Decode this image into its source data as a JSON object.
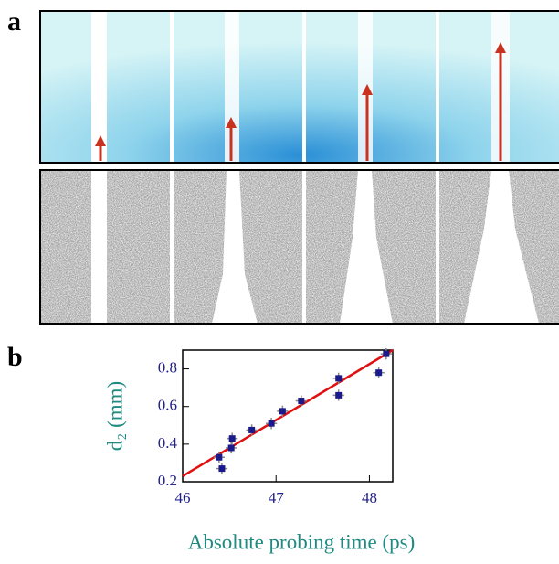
{
  "panel_labels": [
    "a",
    "b"
  ],
  "chart_data": {
    "type": "scatter",
    "xlabel": "Absolute probing time (ps)",
    "ylabel": "d₂ (mm)",
    "xlim": [
      46,
      48.25
    ],
    "ylim": [
      0.2,
      0.9
    ],
    "xticks": [
      46,
      47,
      48
    ],
    "yticks": [
      0.2,
      0.4,
      0.6,
      0.8
    ],
    "series": [
      {
        "color": "#1a1a8c",
        "x": [
          46.39,
          46.42,
          46.52,
          46.53,
          46.74,
          46.95,
          47.07,
          47.27,
          47.67,
          47.67,
          48.1,
          48.18
        ],
        "values": [
          0.33,
          0.27,
          0.38,
          0.43,
          0.475,
          0.51,
          0.575,
          0.63,
          0.66,
          0.75,
          0.78,
          0.88
        ],
        "xerr": 0.06,
        "yerr": 0.03
      }
    ],
    "fit": {
      "color": "#e01010",
      "x": [
        46,
        48.25
      ],
      "y": [
        0.23,
        0.9
      ]
    }
  }
}
